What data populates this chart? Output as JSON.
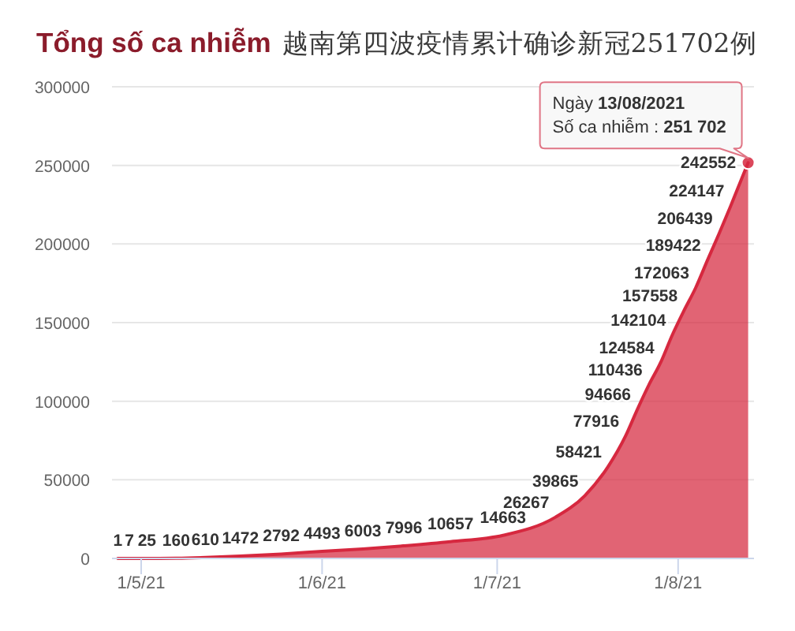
{
  "chart_data": {
    "type": "area",
    "title": "Tổng số ca nhiễm",
    "subtitle": "越南第四波疫情累计确诊新冠251702例",
    "x": [
      "2021-04-27",
      "2021-04-29",
      "2021-05-02",
      "2021-05-07",
      "2021-05-12",
      "2021-05-18",
      "2021-05-25",
      "2021-06-01",
      "2021-06-08",
      "2021-06-15",
      "2021-06-23",
      "2021-07-02",
      "2021-07-11",
      "2021-07-16",
      "2021-07-20",
      "2021-07-23",
      "2021-07-25",
      "2021-07-27",
      "2021-07-29",
      "2021-07-31",
      "2021-08-02",
      "2021-08-04",
      "2021-08-06",
      "2021-08-08",
      "2021-08-10",
      "2021-08-12",
      "2021-08-13"
    ],
    "values": [
      1,
      7,
      25,
      160,
      610,
      1472,
      2792,
      4493,
      6003,
      7996,
      10657,
      14663,
      26267,
      39865,
      58421,
      77916,
      94666,
      110436,
      124584,
      142104,
      157558,
      172063,
      189422,
      206439,
      224147,
      242552,
      251702
    ],
    "value_labels": [
      "1",
      "7",
      "25",
      "160",
      "610",
      "1472",
      "2792",
      "4493",
      "6003",
      "7996",
      "10657",
      "14663",
      "26267",
      "39865",
      "58421",
      "77916",
      "94666",
      "110436",
      "124584",
      "142104",
      "157558",
      "172063",
      "189422",
      "206439",
      "224147",
      "242552",
      null
    ],
    "color": "#d6283f",
    "xlim": [
      "2021-04-26",
      "2021-08-14"
    ],
    "xticks": [
      {
        "value": "2021-05-01",
        "label": "1/5/21"
      },
      {
        "value": "2021-06-01",
        "label": "1/6/21"
      },
      {
        "value": "2021-07-01",
        "label": "1/7/21"
      },
      {
        "value": "2021-08-01",
        "label": "1/8/21"
      }
    ],
    "ylim": [
      0,
      300000
    ],
    "yticks": [
      0,
      50000,
      100000,
      150000,
      200000,
      250000,
      300000
    ],
    "grid": "y",
    "annotations": [
      {
        "text": "Ngày 13/08/2021\nSố ca nhiễm : 251 702",
        "x": "2021-08-13",
        "y": 251702
      }
    ]
  }
}
